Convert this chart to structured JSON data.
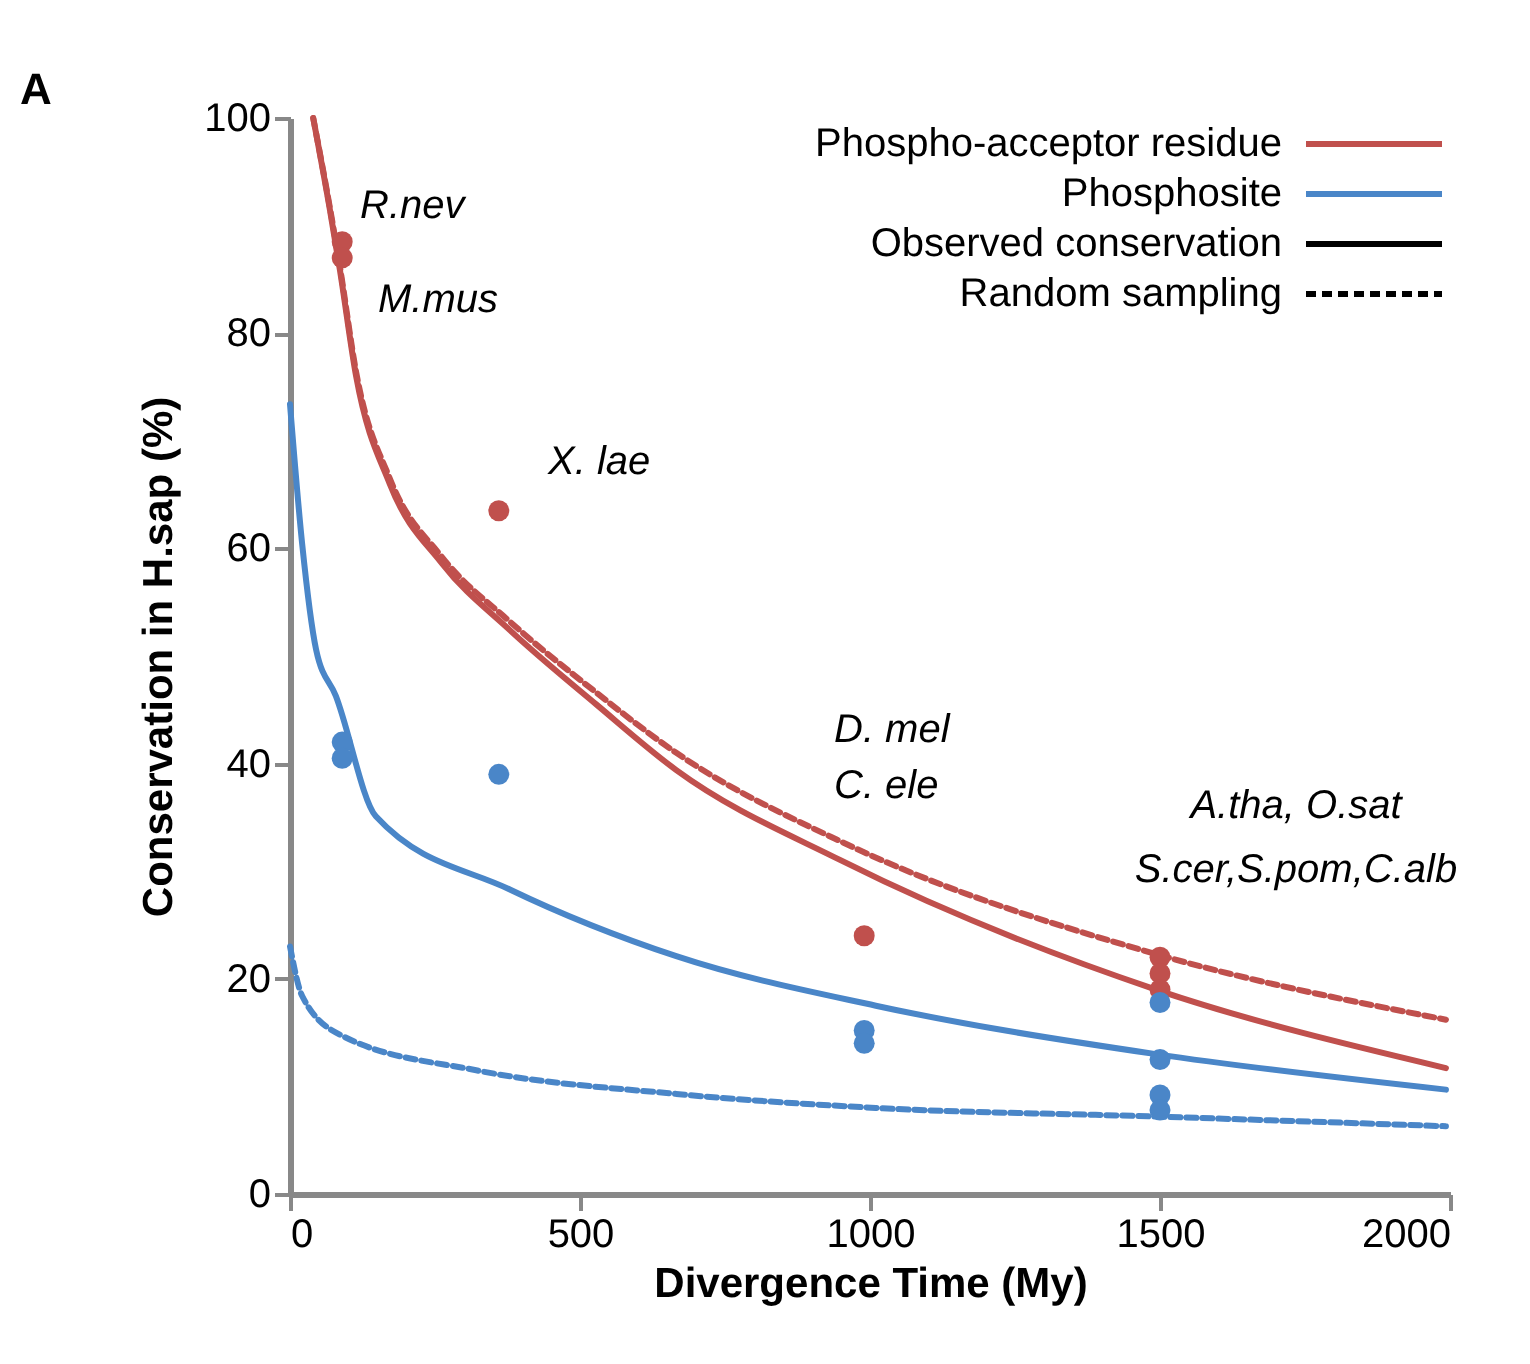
{
  "chart_data": {
    "type": "line",
    "xlabel": "Divergence Time (My)",
    "ylabel": "Conservation in H.sap (%)",
    "xlim": [
      0,
      2000
    ],
    "ylim": [
      0,
      100
    ],
    "xticks": [
      0,
      500,
      1000,
      1500,
      2000
    ],
    "yticks": [
      0,
      20,
      40,
      60,
      80,
      100
    ],
    "grid": false,
    "legend": "top right",
    "series": [
      {
        "name": "Phospho-acceptor residue",
        "color": "#c0504d",
        "line_style": "solid",
        "marker": "none",
        "x": [
          40,
          69,
          86,
          114,
          172,
          262,
          379,
          528,
          666,
          950,
          1493,
          1993
        ],
        "values": [
          100,
          91.4,
          85.9,
          76.0,
          66.0,
          58.6,
          52.4,
          45.5,
          39.4,
          31.0,
          19.0,
          11.7
        ]
      },
      {
        "color": "#c0504d",
        "line_style": "dashed",
        "marker": "none",
        "x": [
          40,
          69,
          86,
          114,
          172,
          262,
          379,
          528,
          666,
          960,
          1493,
          1993
        ],
        "values": [
          100,
          91.6,
          86.2,
          76.4,
          66.5,
          59.2,
          53.2,
          46.6,
          41.0,
          32.5,
          22.3,
          16.2
        ]
      },
      {
        "name": "Phosphosite",
        "color": "#4a86c8",
        "line_style": "solid",
        "marker": "none",
        "x": [
          0,
          21,
          45,
          79,
          148,
          379,
          666,
          1010,
          1493,
          1993
        ],
        "values": [
          73.4,
          60.4,
          50.6,
          46.3,
          35.1,
          28.3,
          22.1,
          17.5,
          13.0,
          9.7
        ]
      },
      {
        "color": "#4a86c8",
        "line_style": "dashed",
        "marker": "none",
        "x": [
          0,
          21,
          90,
          321,
          666,
          1010,
          1493,
          1993
        ],
        "values": [
          23.0,
          18.4,
          14.7,
          11.5,
          9.3,
          8.0,
          7.2,
          6.3
        ]
      },
      {
        "type": "scatter",
        "color": "#c0504d",
        "marker": "circle",
        "x": [
          90,
          90,
          360,
          990,
          1500,
          1500,
          1500
        ],
        "values": [
          88.5,
          87,
          63.5,
          24,
          22,
          20.5,
          19
        ]
      },
      {
        "type": "scatter",
        "color": "#4a86c8",
        "marker": "circle",
        "x": [
          90,
          90,
          360,
          990,
          990,
          1500,
          1500,
          1500,
          1500
        ],
        "values": [
          42,
          40.5,
          39,
          15.2,
          14,
          17.8,
          12.5,
          9.2,
          7.8
        ]
      }
    ],
    "annotations": [
      "A",
      "Observed conservation",
      "Random sampling",
      "D. mel",
      "C. ele",
      "A.tha, O.sat",
      "S.cer,S.pom,C.alb",
      "R.nev",
      "M.mus",
      "X. lae"
    ]
  }
}
